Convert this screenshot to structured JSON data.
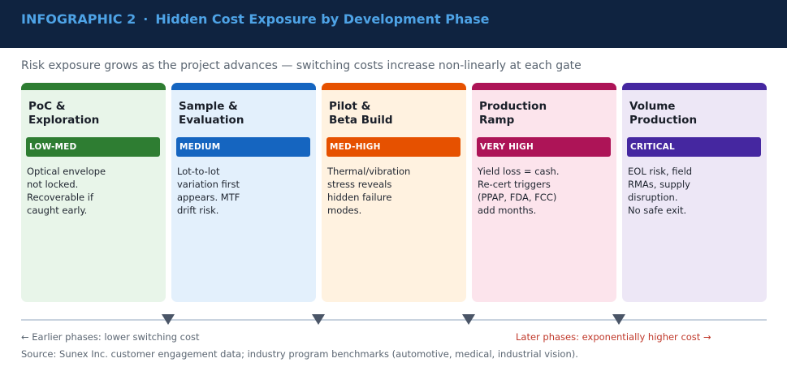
{
  "header": {
    "label": "INFOGRAPHIC 2",
    "separator": "·",
    "title": "Hidden Cost Exposure by Development Phase"
  },
  "subtitle": "Risk exposure grows as the project advances — switching costs increase non-linearly at each gate",
  "phases": [
    {
      "title": "PoC &\nExploration",
      "badge": "LOW-MED",
      "description": "Optical envelope\nnot locked.\nRecoverable if\ncaught early.",
      "accent": "#2e7d32",
      "background": "#e8f5e9"
    },
    {
      "title": "Sample &\nEvaluation",
      "badge": "MEDIUM",
      "description": "Lot-to-lot\nvariation first\nappears. MTF\ndrift risk.",
      "accent": "#1565c0",
      "background": "#e3f0fc"
    },
    {
      "title": "Pilot &\nBeta Build",
      "badge": "MED-HIGH",
      "description": "Thermal/vibration\nstress reveals\nhidden failure\nmodes.",
      "accent": "#e65100",
      "background": "#fff2e0"
    },
    {
      "title": "Production\nRamp",
      "badge": "VERY HIGH",
      "description": "Yield loss = cash.\nRe-cert triggers\n(PPAP, FDA, FCC)\nadd months.",
      "accent": "#ad1457",
      "background": "#fce4ec"
    },
    {
      "title": "Volume\nProduction",
      "badge": "CRITICAL",
      "description": "EOL risk, field\nRMAs, supply\ndisruption.\nNo safe exit.",
      "accent": "#4527a0",
      "background": "#ede7f6"
    }
  ],
  "timeline": {
    "left_note": "← Earlier phases: lower switching cost",
    "right_note": "Later phases: exponentially higher cost →",
    "left_color": "#5b6672",
    "right_color": "#c0392b"
  },
  "source": "Source: Sunex Inc. customer engagement data; industry program benchmarks (automotive, medical, industrial vision)."
}
